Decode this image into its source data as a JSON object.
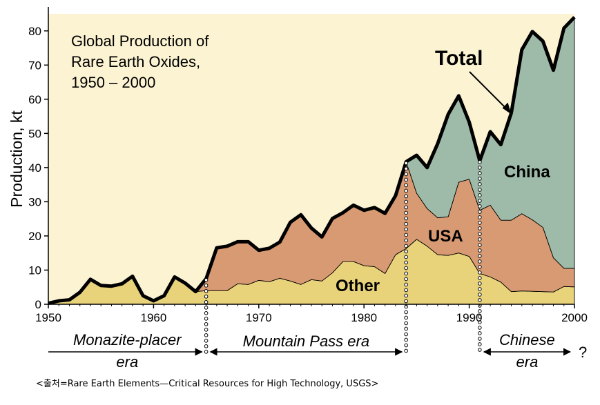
{
  "chart_data": {
    "type": "area",
    "title": "Global Production of\nRare Earth Oxides,\n1950 – 2000",
    "ylabel": "Production, kt",
    "xlabel": "",
    "xlim": [
      1950,
      2000
    ],
    "ylim": [
      0,
      85
    ],
    "x_ticks": [
      1950,
      1960,
      1970,
      1980,
      1990,
      2000
    ],
    "y_ticks": [
      0,
      10,
      20,
      30,
      40,
      50,
      60,
      70,
      80
    ],
    "grid": false,
    "stacked": true,
    "x": [
      1950,
      1951,
      1952,
      1953,
      1954,
      1955,
      1956,
      1957,
      1958,
      1959,
      1960,
      1961,
      1962,
      1963,
      1964,
      1965,
      1966,
      1967,
      1968,
      1969,
      1970,
      1971,
      1972,
      1973,
      1974,
      1975,
      1976,
      1977,
      1978,
      1979,
      1980,
      1981,
      1982,
      1983,
      1984,
      1985,
      1986,
      1987,
      1988,
      1989,
      1990,
      1991,
      1992,
      1993,
      1994,
      1995,
      1996,
      1997,
      1998,
      1999,
      2000
    ],
    "series": [
      {
        "name": "Other",
        "color": "#e8d27a",
        "values": [
          0.3,
          1.0,
          1.3,
          3.5,
          7.3,
          5.5,
          5.3,
          6.0,
          8.2,
          2.5,
          1.0,
          2.5,
          8.0,
          6.2,
          3.7,
          4.0,
          4.0,
          4.0,
          6.0,
          5.8,
          7.0,
          6.6,
          7.6,
          6.8,
          5.8,
          7.2,
          6.8,
          9.2,
          12.5,
          12.5,
          11.3,
          11.0,
          9.0,
          14.5,
          16.3,
          19.0,
          17.0,
          14.5,
          14.3,
          15.0,
          14.0,
          9.0,
          8.0,
          6.5,
          3.7,
          3.9,
          3.8,
          3.7,
          3.6,
          5.2,
          5.1
        ]
      },
      {
        "name": "USA",
        "color": "#d89a73",
        "values": [
          0,
          0,
          0,
          0,
          0,
          0,
          0,
          0,
          0,
          0,
          0,
          0,
          0,
          0,
          0,
          3.5,
          12.5,
          13.0,
          12.3,
          12.5,
          8.8,
          9.8,
          10.6,
          17.2,
          20.4,
          15.1,
          12.9,
          15.9,
          14.3,
          16.5,
          16.2,
          17.3,
          17.6,
          17.3,
          25.4,
          13.5,
          11.0,
          10.8,
          11.3,
          20.7,
          22.6,
          18.5,
          21.0,
          18.1,
          20.9,
          22.6,
          20.9,
          18.8,
          10.0,
          5.3,
          5.4
        ]
      },
      {
        "name": "China",
        "color": "#9dbba8",
        "values": [
          0,
          0,
          0,
          0,
          0,
          0,
          0,
          0,
          0,
          0,
          0,
          0,
          0,
          0,
          0,
          0,
          0,
          0,
          0,
          0,
          0,
          0,
          0,
          0,
          0,
          0,
          0,
          0,
          0,
          0,
          0,
          0,
          0,
          0,
          0,
          11.1,
          12.0,
          21.7,
          30.0,
          25.3,
          16.7,
          14.5,
          21.5,
          22.1,
          31.4,
          48.0,
          55.1,
          54.5,
          54.9,
          70.3,
          73.5
        ]
      }
    ],
    "total": {
      "name": "Total",
      "label": "Total",
      "values": [
        0.3,
        1.0,
        1.3,
        3.5,
        7.3,
        5.5,
        5.3,
        6.0,
        8.2,
        2.5,
        1.0,
        2.5,
        8.0,
        6.2,
        3.7,
        7.5,
        16.5,
        17.0,
        18.3,
        18.3,
        15.8,
        16.4,
        18.2,
        24.0,
        26.2,
        22.3,
        19.7,
        25.1,
        26.8,
        29.0,
        27.5,
        28.3,
        26.6,
        31.8,
        41.7,
        43.6,
        40.0,
        47.0,
        55.6,
        61.0,
        53.3,
        42.0,
        50.5,
        46.7,
        56.0,
        74.5,
        79.8,
        77.0,
        68.5,
        80.8,
        84.0
      ]
    },
    "labels": {
      "other": "Other",
      "usa": "USA",
      "china": "China",
      "total": "Total"
    },
    "eras": [
      {
        "label_line1": "Monazite-placer",
        "label_line2": "era",
        "start": 1950,
        "end": 1965
      },
      {
        "label_line1": "Mountain Pass era",
        "label_line2": "",
        "start": 1965,
        "end": 1984
      },
      {
        "label_line1": "Chinese",
        "label_line2": "era",
        "start": 1991,
        "end": 2000
      }
    ],
    "era_divider_years": [
      1965,
      1984,
      1991
    ],
    "question_mark": "?"
  },
  "source_note": "<출처=Rare Earth Elements—Critical Resources for High Technology, USGS>",
  "colors": {
    "background": "#fbf3d2",
    "total_line": "#000000"
  }
}
